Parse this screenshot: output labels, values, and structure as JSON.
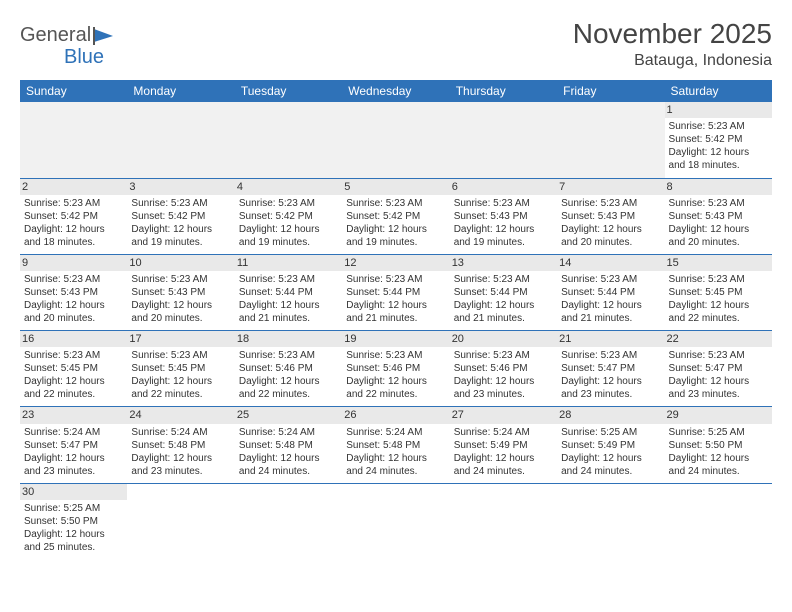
{
  "brand": {
    "part1": "General",
    "part2": "Blue"
  },
  "title": "November 2025",
  "location": "Batauga, Indonesia",
  "colors": {
    "header_bg": "#2f72b8",
    "header_fg": "#ffffff",
    "daynum_bg": "#e9e9e9",
    "border": "#2f72b8"
  },
  "day_headers": [
    "Sunday",
    "Monday",
    "Tuesday",
    "Wednesday",
    "Thursday",
    "Friday",
    "Saturday"
  ],
  "weeks": [
    [
      null,
      null,
      null,
      null,
      null,
      null,
      {
        "n": "1",
        "sr": "Sunrise: 5:23 AM",
        "ss": "Sunset: 5:42 PM",
        "d1": "Daylight: 12 hours",
        "d2": "and 18 minutes."
      }
    ],
    [
      {
        "n": "2",
        "sr": "Sunrise: 5:23 AM",
        "ss": "Sunset: 5:42 PM",
        "d1": "Daylight: 12 hours",
        "d2": "and 18 minutes."
      },
      {
        "n": "3",
        "sr": "Sunrise: 5:23 AM",
        "ss": "Sunset: 5:42 PM",
        "d1": "Daylight: 12 hours",
        "d2": "and 19 minutes."
      },
      {
        "n": "4",
        "sr": "Sunrise: 5:23 AM",
        "ss": "Sunset: 5:42 PM",
        "d1": "Daylight: 12 hours",
        "d2": "and 19 minutes."
      },
      {
        "n": "5",
        "sr": "Sunrise: 5:23 AM",
        "ss": "Sunset: 5:42 PM",
        "d1": "Daylight: 12 hours",
        "d2": "and 19 minutes."
      },
      {
        "n": "6",
        "sr": "Sunrise: 5:23 AM",
        "ss": "Sunset: 5:43 PM",
        "d1": "Daylight: 12 hours",
        "d2": "and 19 minutes."
      },
      {
        "n": "7",
        "sr": "Sunrise: 5:23 AM",
        "ss": "Sunset: 5:43 PM",
        "d1": "Daylight: 12 hours",
        "d2": "and 20 minutes."
      },
      {
        "n": "8",
        "sr": "Sunrise: 5:23 AM",
        "ss": "Sunset: 5:43 PM",
        "d1": "Daylight: 12 hours",
        "d2": "and 20 minutes."
      }
    ],
    [
      {
        "n": "9",
        "sr": "Sunrise: 5:23 AM",
        "ss": "Sunset: 5:43 PM",
        "d1": "Daylight: 12 hours",
        "d2": "and 20 minutes."
      },
      {
        "n": "10",
        "sr": "Sunrise: 5:23 AM",
        "ss": "Sunset: 5:43 PM",
        "d1": "Daylight: 12 hours",
        "d2": "and 20 minutes."
      },
      {
        "n": "11",
        "sr": "Sunrise: 5:23 AM",
        "ss": "Sunset: 5:44 PM",
        "d1": "Daylight: 12 hours",
        "d2": "and 21 minutes."
      },
      {
        "n": "12",
        "sr": "Sunrise: 5:23 AM",
        "ss": "Sunset: 5:44 PM",
        "d1": "Daylight: 12 hours",
        "d2": "and 21 minutes."
      },
      {
        "n": "13",
        "sr": "Sunrise: 5:23 AM",
        "ss": "Sunset: 5:44 PM",
        "d1": "Daylight: 12 hours",
        "d2": "and 21 minutes."
      },
      {
        "n": "14",
        "sr": "Sunrise: 5:23 AM",
        "ss": "Sunset: 5:44 PM",
        "d1": "Daylight: 12 hours",
        "d2": "and 21 minutes."
      },
      {
        "n": "15",
        "sr": "Sunrise: 5:23 AM",
        "ss": "Sunset: 5:45 PM",
        "d1": "Daylight: 12 hours",
        "d2": "and 22 minutes."
      }
    ],
    [
      {
        "n": "16",
        "sr": "Sunrise: 5:23 AM",
        "ss": "Sunset: 5:45 PM",
        "d1": "Daylight: 12 hours",
        "d2": "and 22 minutes."
      },
      {
        "n": "17",
        "sr": "Sunrise: 5:23 AM",
        "ss": "Sunset: 5:45 PM",
        "d1": "Daylight: 12 hours",
        "d2": "and 22 minutes."
      },
      {
        "n": "18",
        "sr": "Sunrise: 5:23 AM",
        "ss": "Sunset: 5:46 PM",
        "d1": "Daylight: 12 hours",
        "d2": "and 22 minutes."
      },
      {
        "n": "19",
        "sr": "Sunrise: 5:23 AM",
        "ss": "Sunset: 5:46 PM",
        "d1": "Daylight: 12 hours",
        "d2": "and 22 minutes."
      },
      {
        "n": "20",
        "sr": "Sunrise: 5:23 AM",
        "ss": "Sunset: 5:46 PM",
        "d1": "Daylight: 12 hours",
        "d2": "and 23 minutes."
      },
      {
        "n": "21",
        "sr": "Sunrise: 5:23 AM",
        "ss": "Sunset: 5:47 PM",
        "d1": "Daylight: 12 hours",
        "d2": "and 23 minutes."
      },
      {
        "n": "22",
        "sr": "Sunrise: 5:23 AM",
        "ss": "Sunset: 5:47 PM",
        "d1": "Daylight: 12 hours",
        "d2": "and 23 minutes."
      }
    ],
    [
      {
        "n": "23",
        "sr": "Sunrise: 5:24 AM",
        "ss": "Sunset: 5:47 PM",
        "d1": "Daylight: 12 hours",
        "d2": "and 23 minutes."
      },
      {
        "n": "24",
        "sr": "Sunrise: 5:24 AM",
        "ss": "Sunset: 5:48 PM",
        "d1": "Daylight: 12 hours",
        "d2": "and 23 minutes."
      },
      {
        "n": "25",
        "sr": "Sunrise: 5:24 AM",
        "ss": "Sunset: 5:48 PM",
        "d1": "Daylight: 12 hours",
        "d2": "and 24 minutes."
      },
      {
        "n": "26",
        "sr": "Sunrise: 5:24 AM",
        "ss": "Sunset: 5:48 PM",
        "d1": "Daylight: 12 hours",
        "d2": "and 24 minutes."
      },
      {
        "n": "27",
        "sr": "Sunrise: 5:24 AM",
        "ss": "Sunset: 5:49 PM",
        "d1": "Daylight: 12 hours",
        "d2": "and 24 minutes."
      },
      {
        "n": "28",
        "sr": "Sunrise: 5:25 AM",
        "ss": "Sunset: 5:49 PM",
        "d1": "Daylight: 12 hours",
        "d2": "and 24 minutes."
      },
      {
        "n": "29",
        "sr": "Sunrise: 5:25 AM",
        "ss": "Sunset: 5:50 PM",
        "d1": "Daylight: 12 hours",
        "d2": "and 24 minutes."
      }
    ],
    [
      {
        "n": "30",
        "sr": "Sunrise: 5:25 AM",
        "ss": "Sunset: 5:50 PM",
        "d1": "Daylight: 12 hours",
        "d2": "and 25 minutes."
      },
      null,
      null,
      null,
      null,
      null,
      null
    ]
  ]
}
